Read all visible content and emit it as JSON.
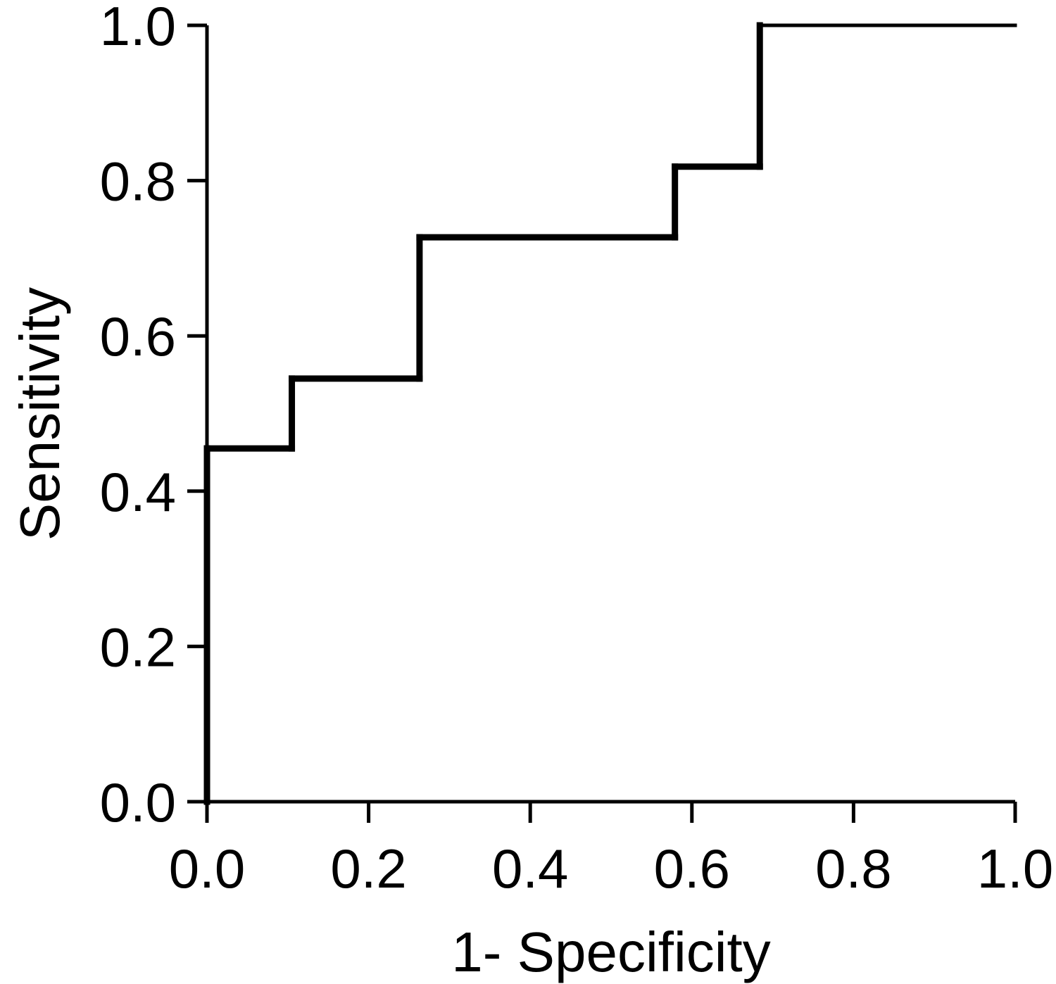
{
  "chart_data": {
    "type": "line",
    "title": "",
    "xlabel": "1- Specificity",
    "ylabel": "Sensitivity",
    "xlim": [
      0,
      1
    ],
    "ylim": [
      0,
      1
    ],
    "grid": false,
    "line_color": "#000000",
    "x_ticks": [
      "0.0",
      "0.2",
      "0.4",
      "0.6",
      "0.8",
      "1.0"
    ],
    "y_ticks": [
      "0.0",
      "0.2",
      "0.4",
      "0.6",
      "0.8",
      "1.0"
    ],
    "series": [
      {
        "step": true,
        "points": [
          {
            "x": 0.0,
            "y": 0.0
          },
          {
            "x": 0.0,
            "y": 0.455
          },
          {
            "x": 0.105,
            "y": 0.455
          },
          {
            "x": 0.105,
            "y": 0.545
          },
          {
            "x": 0.263,
            "y": 0.545
          },
          {
            "x": 0.263,
            "y": 0.727
          },
          {
            "x": 0.579,
            "y": 0.727
          },
          {
            "x": 0.579,
            "y": 0.818
          },
          {
            "x": 0.684,
            "y": 0.818
          },
          {
            "x": 0.684,
            "y": 1.0
          },
          {
            "x": 1.0,
            "y": 1.0
          }
        ]
      }
    ]
  }
}
